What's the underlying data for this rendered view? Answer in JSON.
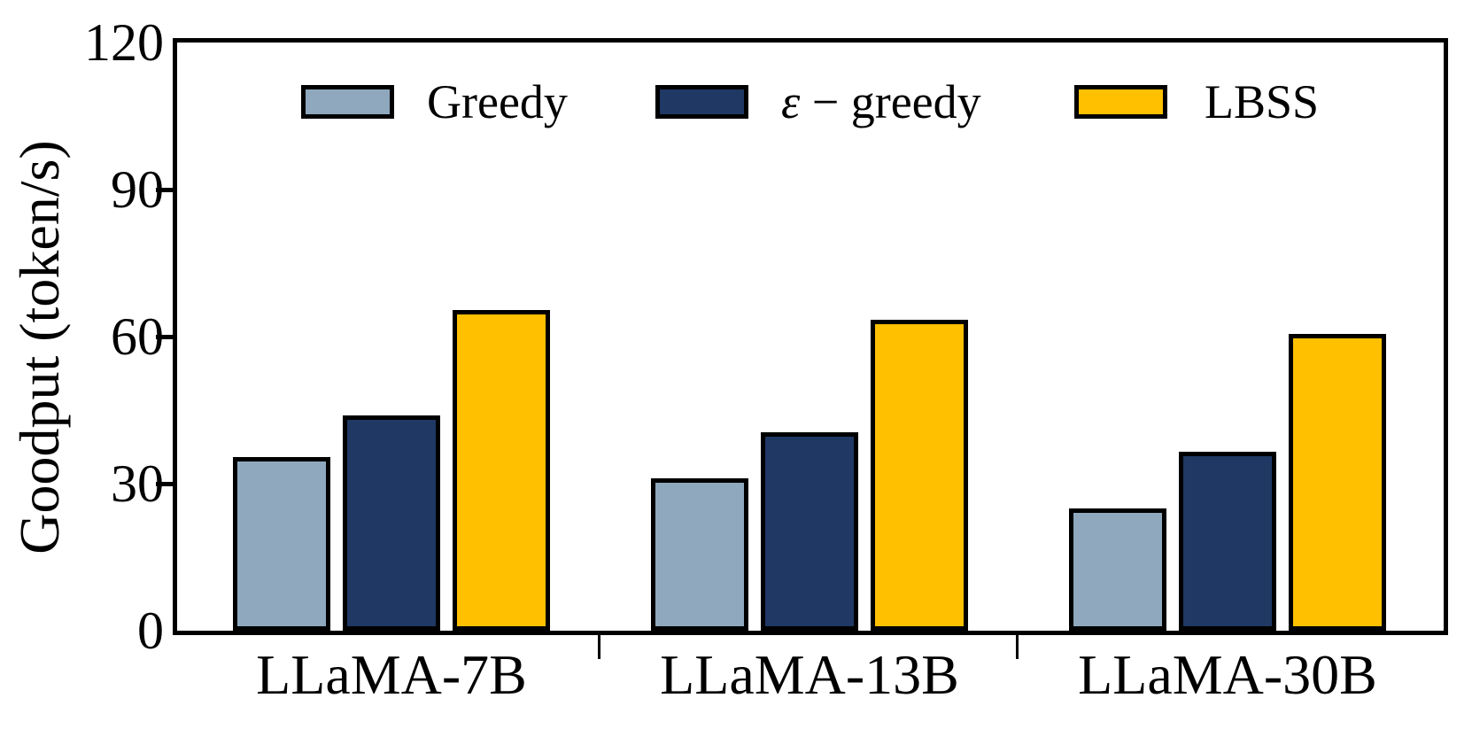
{
  "chart_data": {
    "type": "bar",
    "title": "",
    "categories": [
      "LLaMA-7B",
      "LLaMA-13B",
      "LLaMA-30B"
    ],
    "series": [
      {
        "name": "Greedy",
        "name_symbol": "",
        "name_rest": "Greedy",
        "color": "#8FA8BD",
        "values": [
          35.5,
          31.0,
          25.0
        ]
      },
      {
        "name": "ε − greedy",
        "name_symbol": "ε",
        "name_rest": " − greedy",
        "color": "#1F3864",
        "values": [
          44.0,
          40.5,
          36.5
        ]
      },
      {
        "name": "LBSS",
        "name_symbol": "",
        "name_rest": "LBSS",
        "color": "#FFC000",
        "values": [
          65.5,
          63.5,
          60.5
        ]
      }
    ],
    "xlabel": "",
    "ylabel": "Goodput (token/s)",
    "ylim": [
      0,
      120
    ],
    "yticks": [
      0,
      30,
      60,
      90,
      120
    ],
    "grid": false,
    "legend_position": "top-inside",
    "bar_edge_color": "#000000",
    "axis_color": "#000000"
  }
}
